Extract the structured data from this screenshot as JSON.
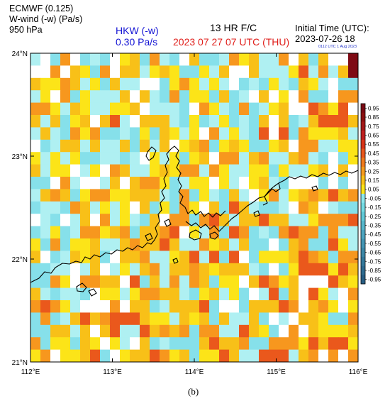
{
  "header": {
    "model": "ECMWF (0.125)",
    "variable": "W-wind (-w) (Pa/s)",
    "level": "950 hPa",
    "station": "HKW (-w)",
    "station_value": "0.30 Pa/s",
    "forecast": "13 HR F/C",
    "valid_time": "2023 07 27  07 UTC (THU)",
    "init_label": "Initial Time (UTC):",
    "init_time": "2023-07-26  18",
    "stamp": "0112 UTC 1 Aug 2023"
  },
  "map": {
    "lon_ticks": [
      "112°E",
      "113°E",
      "114°E",
      "115°E",
      "116°E"
    ],
    "lat_ticks": [
      "21°N",
      "22°N",
      "23°N",
      "24°N"
    ],
    "lon_range": [
      112,
      116
    ],
    "lat_range": [
      21,
      24
    ],
    "grid_resolution_deg": 0.125,
    "field_rows_north_to_south": [
      "BACFACBCADECFBCAECCBFDEBBFAECEAAI",
      "AAFAEDCFAEEBDEDCCDBEAAEBBBDGBFBEI",
      "EDDFEBDCEBBAACDFDBDBACBCDBCEDBACC",
      "BDAFCDBBBEAEBCFCDDCECBAEADAFCCAFF",
      "FFDBEDBBDDEABBBCAFDBCFCBDEAAGFDGA",
      "EBECDEAEGBAEEEBCDCBDCBCEAECBEGGGE",
      "BEBCFDFCCBCDCEDBDAFBDBCGAGCFDDDEB",
      "ACBEEBEBBECEBEADEFCDEDCCDEAFFBBDD",
      "DBDBDCCBBCBADBDCDEAFFBEFBBEFBCACD",
      "EBDDABDAFEBBDEDFFBFDBBDDCDBBDEAEA",
      "CCAFBAABEAEFFDCBDDADBADEBCAAACACA",
      "BEFECDFFDDEEEBCFCDBCEBADFBDEFEGEF",
      "CBBCFEBDBDAECDCFDAECGEBCCBAFEABCC",
      "ABCABEAFBDBCEAFFCFGEBEEGEEBBDFFFG",
      "CBDCBFFDEFCEEFGADBFCGFCBCFGFFCFBB",
      "DCFCDDEBBEFEEGEBBFDEBECCACEFCCGDB",
      "EACBEDECAEEFBBDEGBGCGACDDDEGFECFF",
      "CCBBABEABDBEFBEEFEDEEEBCACDGGGDGE",
      "CCFDAFFEEAGCEBFBFECDDAEGFDEAAAGED",
      "EBCBBCADDBDFFEEBCDEBDCABGCEAGDBAF",
      "FGFDBAAAFAEECBEEEGCAACEEEGFAEFDAD",
      "CFCBEGEFGGGEDDBEDECEBBECABAEEDCCF",
      "CCEEBEAEGBBGEFEFCFFBBGEDCAFAEDDDE",
      "FCDDCEDADBAECBCCCEGEEFCCFFFDGEGGD",
      "DFADDEGCADEEGFDECDDGEBBGGGBEFAFAF"
    ]
  },
  "colorbar": {
    "labels": [
      "0.95",
      "0.85",
      "0.75",
      "0.65",
      "0.55",
      "0.45",
      "0.35",
      "0.25",
      "0.15",
      "0.05",
      "-0.05",
      "-0.15",
      "-0.25",
      "-0.35",
      "-0.45",
      "-0.55",
      "-0.65",
      "-0.75",
      "-0.85",
      "-0.95"
    ],
    "colors": [
      "#7a0a14",
      "#8c1010",
      "#a41818",
      "#c02020",
      "#d83418",
      "#e8561c",
      "#f07a1c",
      "#f69c1e",
      "#fac018",
      "#fce418",
      "#8ee8ee",
      "#76dce4",
      "#62cad8",
      "#58b8cc",
      "#4ea6c0",
      "#4496b4",
      "#3c88a8",
      "#347a9c",
      "#2e6c90",
      "#285e84"
    ]
  },
  "field_colors": {
    "A": "#ffffff",
    "B": "#aff0f2",
    "C": "#86e0ea",
    "D": "#fce418",
    "E": "#f8c018",
    "F": "#f7971e",
    "G": "#ea581c",
    "H": "#c42222",
    "I": "#7e0a14",
    "J": "#2e7ba6",
    "K": "#1f5f8a"
  },
  "caption": "(b)"
}
